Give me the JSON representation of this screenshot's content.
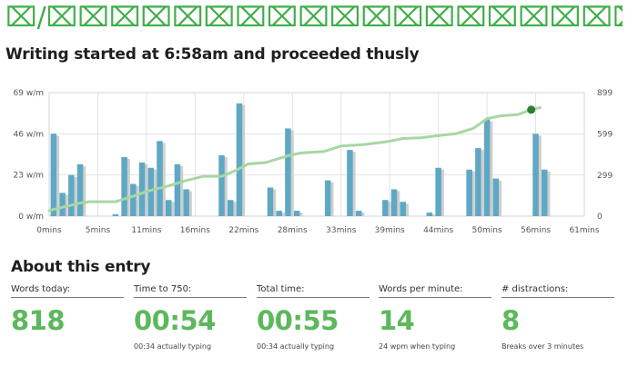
{
  "banner": {
    "text": "⌧/⌧⌧⌧⌧⌧⌧⌧⌧⌧⌧⌧⌧⌧⌧⌧⌧⌧⌧⌧⌧⌧⌧/⌧⌧⌧⌧⌧"
  },
  "chart": {
    "heading": "Writing started at 6:58am and proceeded thusly"
  },
  "chart_data": {
    "type": "bar+line",
    "x_ticks": [
      "0mins",
      "5mins",
      "11mins",
      "16mins",
      "22mins",
      "28mins",
      "33mins",
      "39mins",
      "44mins",
      "50mins",
      "56mins",
      "61mins"
    ],
    "x_tick_values": [
      0,
      5.5,
      11,
      16.5,
      22,
      27.5,
      33,
      38.5,
      44,
      49.5,
      55,
      60.5
    ],
    "xlim": [
      0,
      60.5
    ],
    "y_left_ticks": [
      "0 w/m",
      "23 w/m",
      "46 w/m",
      "69 w/m"
    ],
    "y_left_values": [
      0,
      23,
      46,
      69
    ],
    "ylim_left": [
      0,
      69
    ],
    "y_right_ticks": [
      "0",
      "299",
      "599",
      "899"
    ],
    "y_right_values": [
      0,
      299,
      599,
      899
    ],
    "ylim_right": [
      0,
      899
    ],
    "grid": true,
    "series": [
      {
        "kind": "bar",
        "axis": "left",
        "color": "#5fa8c4",
        "x": [
          0.5,
          1.5,
          2.5,
          3.5,
          7.5,
          8.5,
          9.5,
          10.5,
          11.5,
          12.5,
          13.5,
          14.5,
          15.5,
          19.5,
          20.5,
          21.5,
          25.0,
          26.0,
          27.0,
          28.0,
          31.5,
          34.0,
          35.0,
          38.0,
          39.0,
          40.0,
          43.0,
          44.0,
          47.5,
          48.5,
          49.5,
          50.5,
          55.0,
          56.0
        ],
        "values": [
          46,
          13,
          23,
          29,
          1,
          33,
          18,
          30,
          27,
          42,
          9,
          29,
          15,
          34,
          9,
          63,
          16,
          3,
          49,
          3,
          20,
          37,
          3,
          9,
          15,
          8,
          2,
          27,
          26,
          38,
          54,
          21,
          46,
          26
        ]
      },
      {
        "kind": "line",
        "axis": "right",
        "color": "#a7d7a3",
        "x": [
          0,
          1.5,
          3.5,
          4.5,
          7.5,
          9.5,
          11,
          13.5,
          15.5,
          17.5,
          19.5,
          21,
          22.5,
          24.5,
          27,
          28.5,
          31,
          33,
          35.5,
          38,
          40,
          42,
          44.5,
          46,
          48,
          49.5,
          51,
          53,
          54.5,
          55.5
        ],
        "values": [
          40,
          65,
          95,
          105,
          105,
          145,
          180,
          220,
          260,
          290,
          290,
          330,
          380,
          390,
          440,
          460,
          470,
          510,
          520,
          540,
          565,
          570,
          590,
          600,
          640,
          710,
          730,
          740,
          775,
          790
        ],
        "end_marker": {
          "x": 54.5,
          "value": 775,
          "color": "#2e7d32"
        }
      }
    ]
  },
  "about": {
    "heading": "About this entry",
    "stats": [
      {
        "label": "Words today:",
        "value": "818",
        "note": ""
      },
      {
        "label": "Time to 750:",
        "value": "00:54",
        "note": "00:34 actually typing"
      },
      {
        "label": "Total time:",
        "value": "00:55",
        "note": "00:34 actually typing"
      },
      {
        "label": "Words per minute:",
        "value": "14",
        "note": "24 wpm when typing"
      },
      {
        "label": "# distractions:",
        "value": "8",
        "note": "Breaks over 3 minutes"
      }
    ]
  }
}
